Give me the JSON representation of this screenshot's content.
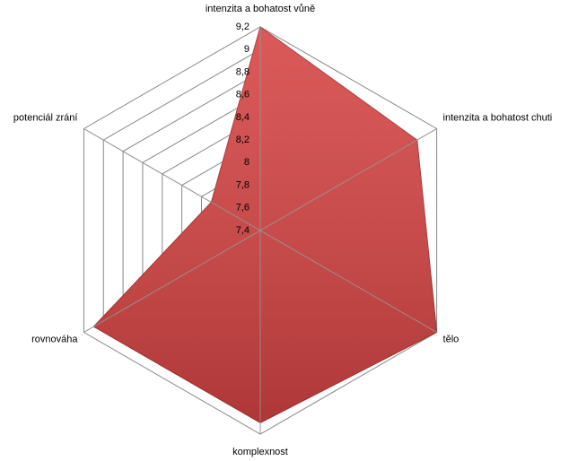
{
  "chart_data": {
    "type": "radar",
    "categories": [
      "intenzita a bohatost vůně",
      "intenzita a bohatost chuti",
      "tělo",
      "komplexnost",
      "rovnováha",
      "potenciál zrání"
    ],
    "values": [
      9.2,
      9.0,
      9.2,
      9.1,
      9.1,
      7.9
    ],
    "color": "#d54343",
    "rlim": [
      7.4,
      9.2
    ],
    "rticks": [
      {
        "value": 7.4,
        "label": "7,4"
      },
      {
        "value": 7.6,
        "label": "7,6"
      },
      {
        "value": 7.8,
        "label": "7,8"
      },
      8,
      {
        "value": 8.2,
        "label": "8,2"
      },
      {
        "value": 8.4,
        "label": "8,4"
      },
      {
        "value": 8.6,
        "label": "8,6"
      },
      {
        "value": 8.8,
        "label": "8,8"
      },
      9,
      {
        "value": 9.2,
        "label": "9,2"
      }
    ],
    "grid": true
  }
}
